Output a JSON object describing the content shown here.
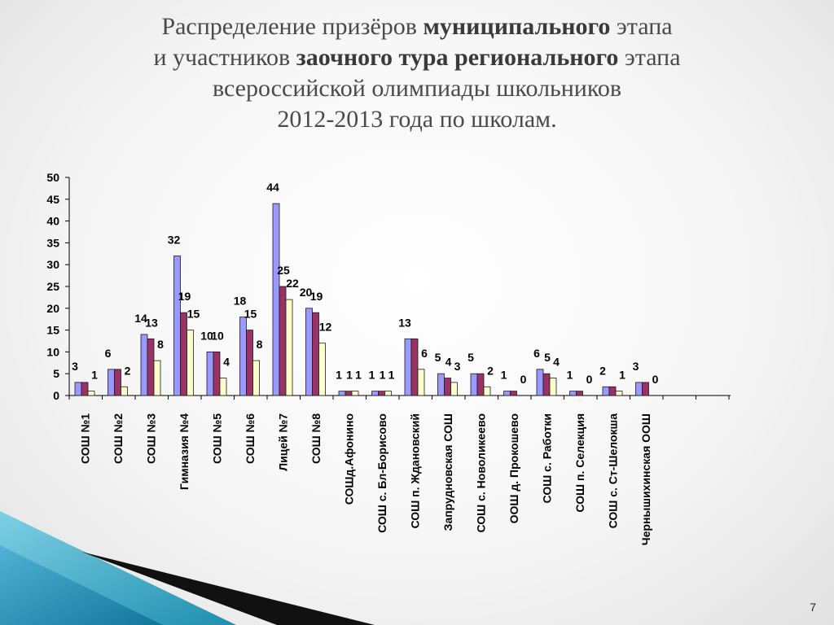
{
  "title": {
    "l1": {
      "a": "Распределение призёров  ",
      "b": "муниципального",
      "c": " этапа"
    },
    "l2": {
      "a": "и участников ",
      "b": "заочного тура регионального",
      "c": " этапа"
    },
    "l3": "всероссийской олимпиады школьников",
    "l4": "2012-2013 года по школам."
  },
  "page_number": "7",
  "chart_data": {
    "type": "bar",
    "ylim": [
      0,
      50
    ],
    "yticks": [
      0,
      5,
      10,
      15,
      20,
      25,
      30,
      35,
      40,
      45,
      50
    ],
    "categories": [
      "СОШ №1",
      "СОШ №2",
      "СОШ №3",
      "Гимназия №4",
      "СОШ №5",
      "СОШ №6",
      "Лицей №7",
      "СОШ №8",
      "СОШд.Афонино",
      "СОШ с. Бл-Борисово",
      "СОШ п. Ждановский",
      "Запрудновская СОШ",
      "СОШ с. Новоликеево",
      "ООШ д. Прокошево",
      "СОШ с. Работки",
      "СОШ п. Селекция",
      "СОШ с. Ст-Шелокша",
      "Чернышихинская ООШ"
    ],
    "series": [
      {
        "color": "#9999ff",
        "values": [
          3,
          6,
          14,
          32,
          10,
          18,
          44,
          20,
          1,
          1,
          13,
          5,
          5,
          1,
          6,
          1,
          2,
          3
        ]
      },
      {
        "color": "#993366",
        "values": [
          3,
          6,
          13,
          19,
          10,
          15,
          25,
          19,
          1,
          1,
          13,
          4,
          5,
          1,
          5,
          1,
          2,
          3
        ]
      },
      {
        "color": "#ffffcc",
        "values": [
          1,
          2,
          8,
          15,
          4,
          8,
          22,
          12,
          1,
          1,
          6,
          3,
          2,
          0,
          4,
          0,
          1,
          0
        ]
      }
    ],
    "data_labels": [
      {
        "cat": 0,
        "s": 0,
        "text": "3"
      },
      {
        "cat": 0,
        "s": 2,
        "text": "1"
      },
      {
        "cat": 1,
        "s": 0,
        "text": "6"
      },
      {
        "cat": 1,
        "s": 2,
        "text": "2"
      },
      {
        "cat": 2,
        "s": 0,
        "text": "14"
      },
      {
        "cat": 2,
        "s": 1,
        "text": "13"
      },
      {
        "cat": 2,
        "s": 2,
        "text": "8"
      },
      {
        "cat": 3,
        "s": 0,
        "text": "32"
      },
      {
        "cat": 3,
        "s": 1,
        "text": "19"
      },
      {
        "cat": 3,
        "s": 2,
        "text": "15"
      },
      {
        "cat": 4,
        "s": 0,
        "text": "10"
      },
      {
        "cat": 4,
        "s": 1,
        "text": "10"
      },
      {
        "cat": 4,
        "s": 2,
        "text": "4"
      },
      {
        "cat": 5,
        "s": 0,
        "text": "18"
      },
      {
        "cat": 5,
        "s": 1,
        "text": "15"
      },
      {
        "cat": 5,
        "s": 2,
        "text": "8"
      },
      {
        "cat": 6,
        "s": 0,
        "text": "44"
      },
      {
        "cat": 6,
        "s": 1,
        "text": "25"
      },
      {
        "cat": 6,
        "s": 2,
        "text": "22"
      },
      {
        "cat": 7,
        "s": 0,
        "text": "20"
      },
      {
        "cat": 7,
        "s": 1,
        "text": "19"
      },
      {
        "cat": 7,
        "s": 2,
        "text": "12"
      },
      {
        "cat": 8,
        "s": 0,
        "text": "1"
      },
      {
        "cat": 8,
        "s": 1,
        "text": "1"
      },
      {
        "cat": 8,
        "s": 2,
        "text": "1"
      },
      {
        "cat": 9,
        "s": 0,
        "text": "1"
      },
      {
        "cat": 9,
        "s": 1,
        "text": "1"
      },
      {
        "cat": 9,
        "s": 2,
        "text": "1"
      },
      {
        "cat": 10,
        "s": 0,
        "text": "13"
      },
      {
        "cat": 10,
        "s": 2,
        "text": "6"
      },
      {
        "cat": 11,
        "s": 0,
        "text": "5"
      },
      {
        "cat": 11,
        "s": 1,
        "text": "4"
      },
      {
        "cat": 11,
        "s": 2,
        "text": "3"
      },
      {
        "cat": 12,
        "s": 0,
        "text": "5"
      },
      {
        "cat": 12,
        "s": 2,
        "text": "2"
      },
      {
        "cat": 13,
        "s": 0,
        "text": "1"
      },
      {
        "cat": 13,
        "s": 2,
        "text": "0"
      },
      {
        "cat": 14,
        "s": 0,
        "text": "6"
      },
      {
        "cat": 14,
        "s": 1,
        "text": "5"
      },
      {
        "cat": 14,
        "s": 2,
        "text": "4"
      },
      {
        "cat": 15,
        "s": 0,
        "text": "1"
      },
      {
        "cat": 15,
        "s": 2,
        "text": "0"
      },
      {
        "cat": 16,
        "s": 0,
        "text": "2"
      },
      {
        "cat": 16,
        "s": 2,
        "text": "1"
      },
      {
        "cat": 17,
        "s": 0,
        "text": "3"
      },
      {
        "cat": 17,
        "s": 2,
        "text": "0"
      }
    ],
    "legend": "none",
    "grid": false
  }
}
